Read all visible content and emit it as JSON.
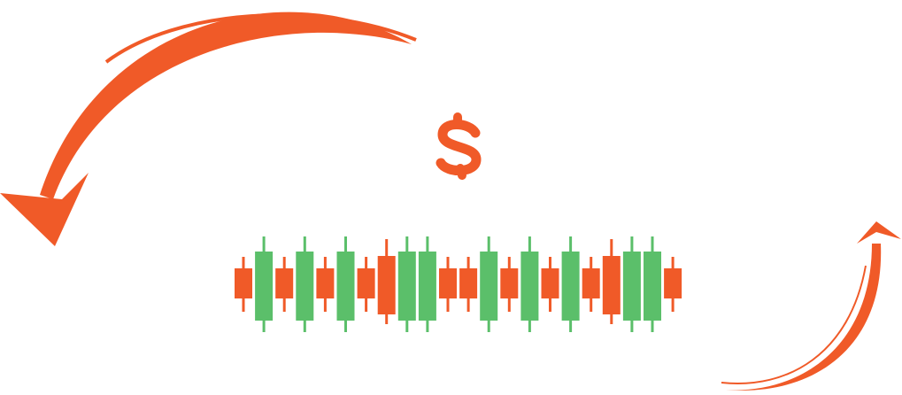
{
  "colors": {
    "background": "#ffffff",
    "accent_orange": "#f05a28",
    "bull_green": "#5bbf6a",
    "bear_orange": "#f05a28"
  },
  "icons": {
    "top_left_arrow": "curved-arrow-icon",
    "bottom_right_arrow": "curved-arrow-icon",
    "currency": "dollar-sign-icon"
  },
  "candles": [
    {
      "color": "bear",
      "size": "small"
    },
    {
      "color": "bull",
      "size": "large"
    },
    {
      "color": "bear",
      "size": "small"
    },
    {
      "color": "bull",
      "size": "large"
    },
    {
      "color": "bear",
      "size": "small"
    },
    {
      "color": "bull",
      "size": "large"
    },
    {
      "color": "bear",
      "size": "small"
    },
    {
      "color": "bear",
      "size": "medium"
    },
    {
      "color": "bull",
      "size": "large"
    },
    {
      "color": "bull",
      "size": "large"
    },
    {
      "color": "bear",
      "size": "small"
    },
    {
      "color": "bear",
      "size": "small"
    },
    {
      "color": "bull",
      "size": "large"
    },
    {
      "color": "bear",
      "size": "small"
    },
    {
      "color": "bull",
      "size": "large"
    },
    {
      "color": "bear",
      "size": "small"
    },
    {
      "color": "bull",
      "size": "large"
    },
    {
      "color": "bear",
      "size": "small"
    },
    {
      "color": "bear",
      "size": "medium"
    },
    {
      "color": "bull",
      "size": "large"
    },
    {
      "color": "bull",
      "size": "large"
    },
    {
      "color": "bear",
      "size": "small"
    }
  ]
}
